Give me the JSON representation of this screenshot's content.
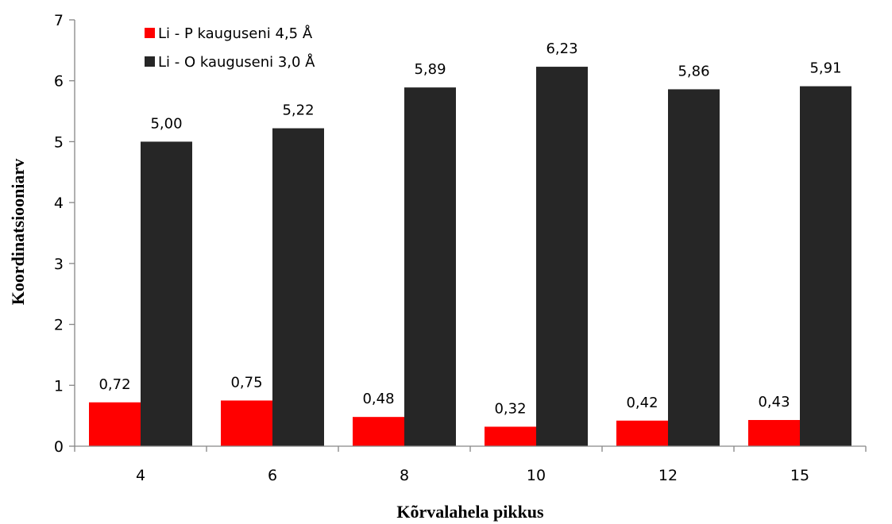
{
  "chart_data": {
    "type": "bar",
    "categories": [
      "4",
      "6",
      "8",
      "10",
      "12",
      "15"
    ],
    "series": [
      {
        "name": "Li - P kauguseni 4,5 Å",
        "color": "#ff0000",
        "values": [
          0.72,
          0.75,
          0.48,
          0.32,
          0.42,
          0.43
        ],
        "labels": [
          "0,72",
          "0,75",
          "0,48",
          "0,32",
          "0,42",
          "0,43"
        ]
      },
      {
        "name": "Li - O kauguseni 3,0 Å",
        "color": "#262626",
        "values": [
          5.0,
          5.22,
          5.89,
          6.23,
          5.86,
          5.91
        ],
        "labels": [
          "5,00",
          "5,22",
          "5,89",
          "6,23",
          "5,86",
          "5,91"
        ]
      }
    ],
    "xlabel": "Kõrvalahela pikkus",
    "ylabel": "Koordinatsiooniarv",
    "ylim": [
      0,
      7
    ],
    "yticks": [
      "0",
      "1",
      "2",
      "3",
      "4",
      "5",
      "6",
      "7"
    ],
    "grid": false,
    "legend": "top-left"
  }
}
